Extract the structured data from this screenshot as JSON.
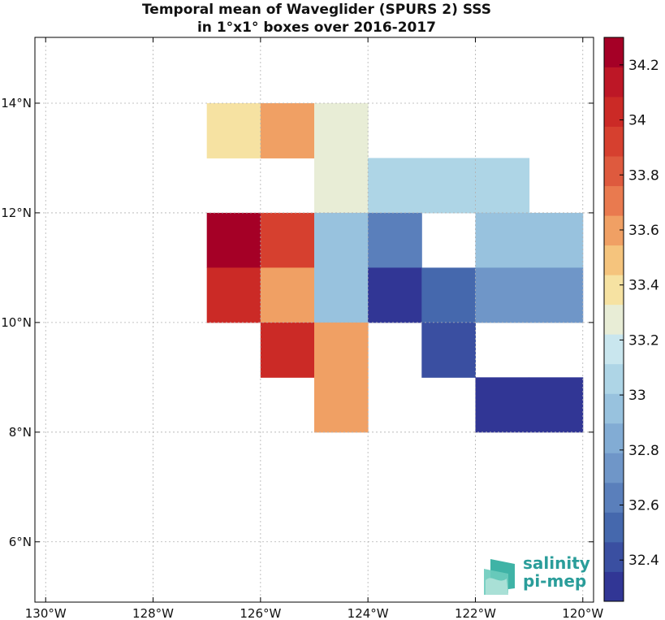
{
  "chart_data": {
    "type": "heatmap",
    "title": [
      "Temporal mean of Waveglider (SPURS 2) SSS",
      "in 1°x1° boxes over 2016-2017"
    ],
    "xlabel": "",
    "ylabel": "",
    "xlim": [
      -130.2,
      -119.8
    ],
    "ylim": [
      4.9,
      15.2
    ],
    "x_ticks": [
      {
        "value": -130,
        "label": "130°W"
      },
      {
        "value": -128,
        "label": "128°W"
      },
      {
        "value": -126,
        "label": "126°W"
      },
      {
        "value": -124,
        "label": "124°W"
      },
      {
        "value": -122,
        "label": "122°W"
      },
      {
        "value": -120,
        "label": "120°W"
      }
    ],
    "y_ticks": [
      {
        "value": 6,
        "label": "6°N"
      },
      {
        "value": 8,
        "label": "8°N"
      },
      {
        "value": 10,
        "label": "10°N"
      },
      {
        "value": 12,
        "label": "12°N"
      },
      {
        "value": 14,
        "label": "14°N"
      }
    ],
    "grid": true,
    "cells": [
      {
        "lon": -127,
        "lat": 13,
        "value": 33.4
      },
      {
        "lon": -126,
        "lat": 13,
        "value": 33.55
      },
      {
        "lon": -125,
        "lat": 13,
        "value": 33.3
      },
      {
        "lon": -125,
        "lat": 12,
        "value": 33.3
      },
      {
        "lon": -124,
        "lat": 12,
        "value": 33.1
      },
      {
        "lon": -123,
        "lat": 12,
        "value": 33.1
      },
      {
        "lon": -122,
        "lat": 12,
        "value": 33.1
      },
      {
        "lon": -127,
        "lat": 11,
        "value": 34.25
      },
      {
        "lon": -126,
        "lat": 11,
        "value": 33.95
      },
      {
        "lon": -125,
        "lat": 11,
        "value": 32.9
      },
      {
        "lon": -124,
        "lat": 11,
        "value": 32.65
      },
      {
        "lon": -122,
        "lat": 11,
        "value": 33.0
      },
      {
        "lon": -121,
        "lat": 11,
        "value": 33.0
      },
      {
        "lon": -127,
        "lat": 10,
        "value": 34.05
      },
      {
        "lon": -126,
        "lat": 10,
        "value": 33.55
      },
      {
        "lon": -125,
        "lat": 10,
        "value": 32.9
      },
      {
        "lon": -124,
        "lat": 10,
        "value": 32.35
      },
      {
        "lon": -123,
        "lat": 10,
        "value": 32.55
      },
      {
        "lon": -122,
        "lat": 10,
        "value": 32.75
      },
      {
        "lon": -121,
        "lat": 10,
        "value": 32.75
      },
      {
        "lon": -126,
        "lat": 9,
        "value": 34.05
      },
      {
        "lon": -125,
        "lat": 9,
        "value": 33.55
      },
      {
        "lon": -123,
        "lat": 9,
        "value": 32.4
      },
      {
        "lon": -125,
        "lat": 8,
        "value": 33.55
      },
      {
        "lon": -122,
        "lat": 8,
        "value": 32.35
      },
      {
        "lon": -121,
        "lat": 8,
        "value": 32.35
      }
    ],
    "colorbar": {
      "min": 32.25,
      "max": 34.3,
      "ticks": [
        32.4,
        32.6,
        32.8,
        33,
        33.2,
        33.4,
        33.6,
        33.8,
        34,
        34.2
      ],
      "tick_labels": [
        "32.4",
        "32.6",
        "32.8",
        "33",
        "33.2",
        "33.4",
        "33.6",
        "33.8",
        "34",
        "34.2"
      ],
      "colors": [
        "#313695",
        "#3a4fa1",
        "#4568ad",
        "#5a7fbb",
        "#6f96c8",
        "#82acd4",
        "#98c2de",
        "#aed5e6",
        "#c9e6ee",
        "#e8edd6",
        "#f6e2a2",
        "#f5c47d",
        "#f0a064",
        "#e97a4f",
        "#de5a3e",
        "#d6402f",
        "#cb2a26",
        "#bd1726",
        "#a50026"
      ]
    }
  },
  "logo": {
    "line1": "salinity",
    "line2": "pi-mep"
  }
}
